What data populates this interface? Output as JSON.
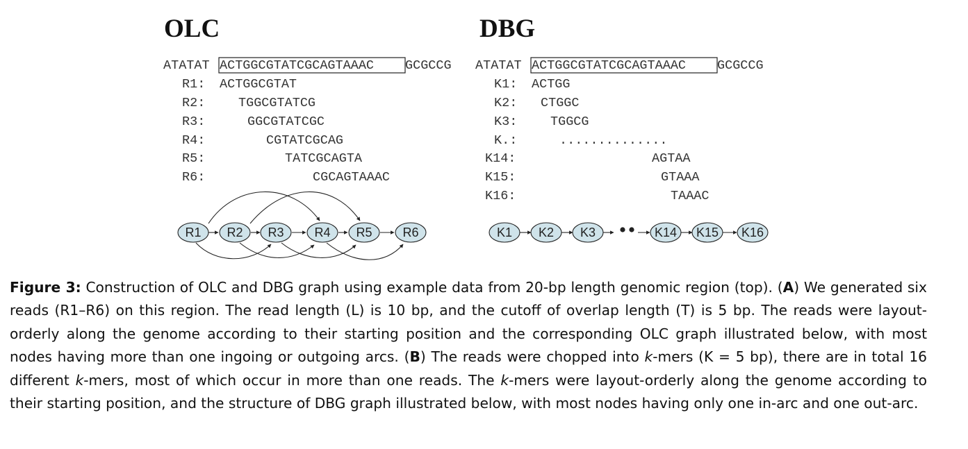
{
  "panels": [
    {
      "id": "olc",
      "title": "OLC",
      "sequence": {
        "prefix": "ATATAT",
        "boxed": "ACTGGCGTATCGCAGTAAAC",
        "suffix": "GCGCCG"
      },
      "rows": [
        {
          "label": "R1:",
          "offset": 0,
          "seq": "ACTGGCGTAT"
        },
        {
          "label": "R2:",
          "offset": 2,
          "seq": "TGGCGTATCG"
        },
        {
          "label": "R3:",
          "offset": 3,
          "seq": "GGCGTATCGC"
        },
        {
          "label": "R4:",
          "offset": 5,
          "seq": "CGTATCGCAG"
        },
        {
          "label": "R5:",
          "offset": 7,
          "seq": "TATCGCAGTA"
        },
        {
          "label": "R6:",
          "offset": 10,
          "seq": "CGCAGTAAAC"
        }
      ],
      "nodes": [
        "R1",
        "R2",
        "R3",
        "R4",
        "R5",
        "R6"
      ]
    },
    {
      "id": "dbg",
      "title": "DBG",
      "sequence": {
        "prefix": "ATATAT",
        "boxed": "ACTGGCGTATCGCAGTAAAC",
        "suffix": "GCGCCG"
      },
      "rows": [
        {
          "label": "K1:",
          "offset": 0,
          "seq": "ACTGG"
        },
        {
          "label": "K2:",
          "offset": 1,
          "seq": "CTGGC"
        },
        {
          "label": "K3:",
          "offset": 2,
          "seq": "TGGCG"
        },
        {
          "label": "K.:",
          "offset": 3,
          "seq": ".............."
        },
        {
          "label": "K14:",
          "offset": 13,
          "seq": "AGTAA"
        },
        {
          "label": "K15:",
          "offset": 14,
          "seq": "GTAAA"
        },
        {
          "label": "K16:",
          "offset": 15,
          "seq": "TAAAC"
        }
      ],
      "nodes": [
        "K1",
        "K2",
        "K3",
        "K14",
        "K15",
        "K16"
      ]
    }
  ],
  "caption": {
    "figure_label": "Figure 3:",
    "intro": " Construction of OLC and DBG graph using example data from 20-bp length genomic region (top). (",
    "a_label": "A",
    "a_text": ") We generated six reads (R1–R6) on this region. The read length (L) is 10 bp, and the cutoff of overlap length (T) is 5 bp. The reads were layout-orderly along the genome according to their starting position and the corresponding OLC graph illustrated below, with most nodes having more than one ingoing or outgoing arcs. (",
    "b_label": "B",
    "b_text1": ") The reads were chopped into ",
    "k1": "k",
    "b_text2": "-mers (K = 5 bp), there are in total 16 different ",
    "k2": "k",
    "b_text3": "-mers, most of which occur in more than one reads. The ",
    "k3": "k",
    "b_text4": "-mers were layout-orderly along the genome according to their starting position, and the structure of DBG graph illustrated below, with most nodes having only one in-arc and one out-arc."
  },
  "colors": {
    "node_fill": "#cfe3ea",
    "stroke": "#222222",
    "text": "#222222"
  }
}
